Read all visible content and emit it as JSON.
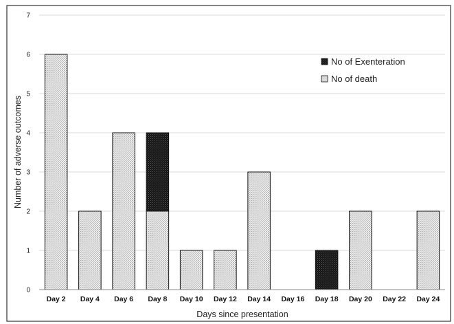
{
  "chart_data": {
    "type": "bar",
    "stacked": true,
    "title": "",
    "xlabel": "Days since presentation",
    "ylabel": "Number of adverse outcomes",
    "ylim": [
      0,
      7
    ],
    "yticks": [
      0,
      1,
      2,
      3,
      4,
      5,
      6,
      7
    ],
    "grid": true,
    "legend_position": "top-right",
    "categories": [
      "Day 2",
      "Day 4",
      "Day 6",
      "Day 8",
      "Day 10",
      "Day 12",
      "Day 14",
      "Day 16",
      "Day 18",
      "Day 20",
      "Day 22",
      "Day 24"
    ],
    "series": [
      {
        "name": "No of death",
        "pattern": "light-dotted",
        "color": "#d8d8d8",
        "values": [
          6,
          2,
          4,
          2,
          1,
          1,
          3,
          0,
          0,
          2,
          0,
          2
        ]
      },
      {
        "name": "No of Exenteration",
        "pattern": "dark-dotted",
        "color": "#1a1a1a",
        "values": [
          0,
          0,
          0,
          2,
          0,
          0,
          0,
          0,
          1,
          0,
          0,
          0
        ]
      }
    ],
    "legend_order": [
      "No of Exenteration",
      "No of death"
    ]
  }
}
